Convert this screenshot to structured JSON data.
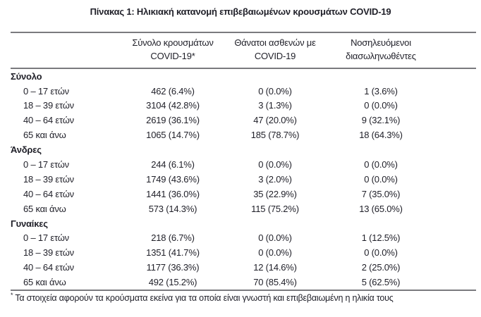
{
  "title": "Πίνακας 1: Ηλικιακή κατανομή επιβεβαιωμένων κρουσμάτων COVID-19",
  "table": {
    "col_headers": [
      {
        "line1": "Σύνολο κρουσμάτων",
        "line2": "COVID-19*"
      },
      {
        "line1": "Θάνατοι ασθενών με",
        "line2": "COVID-19"
      },
      {
        "line1": "Νοσηλευόμενοι",
        "line2": "διασωληνωθέντες"
      }
    ],
    "sections": [
      {
        "label": "Σύνολο",
        "rows": [
          {
            "age": "0 – 17 ετών",
            "cases": "462 (6.4%)",
            "deaths": "0 (0.0%)",
            "intubated": "1 (3.6%)"
          },
          {
            "age": "18 – 39 ετών",
            "cases": "3104 (42.8%)",
            "deaths": "3 (1.3%)",
            "intubated": "0 (0.0%)"
          },
          {
            "age": "40 – 64 ετών",
            "cases": "2619 (36.1%)",
            "deaths": "47 (20.0%)",
            "intubated": "9 (32.1%)"
          },
          {
            "age": "65 και άνω",
            "cases": "1065 (14.7%)",
            "deaths": "185 (78.7%)",
            "intubated": "18 (64.3%)"
          }
        ]
      },
      {
        "label": "Άνδρες",
        "rows": [
          {
            "age": "0 – 17 ετών",
            "cases": "244 (6.1%)",
            "deaths": "0 (0.0%)",
            "intubated": "0 (0.0%)"
          },
          {
            "age": "18 – 39 ετών",
            "cases": "1749 (43.6%)",
            "deaths": "3 (2.0%)",
            "intubated": "0 (0.0%)"
          },
          {
            "age": "40 – 64 ετών",
            "cases": "1441 (36.0%)",
            "deaths": "35 (22.9%)",
            "intubated": "7 (35.0%)"
          },
          {
            "age": "65 και άνω",
            "cases": "573 (14.3%)",
            "deaths": "115 (75.2%)",
            "intubated": "13 (65.0%)"
          }
        ]
      },
      {
        "label": "Γυναίκες",
        "rows": [
          {
            "age": "0 – 17 ετών",
            "cases": "218 (6.7%)",
            "deaths": "0 (0.0%)",
            "intubated": "1 (12.5%)"
          },
          {
            "age": "18 – 39 ετών",
            "cases": "1351 (41.7%)",
            "deaths": "0 (0.0%)",
            "intubated": "0 (0.0%)"
          },
          {
            "age": "40 – 64 ετών",
            "cases": "1177 (36.3%)",
            "deaths": "12 (14.6%)",
            "intubated": "2 (25.0%)"
          },
          {
            "age": "65 και άνω",
            "cases": "492 (15.2%)",
            "deaths": "70 (85.4%)",
            "intubated": "5 (62.5%)"
          }
        ]
      }
    ]
  },
  "footnote": {
    "marker": "*",
    "text": "Τα στοιχεία αφορούν τα κρούσματα εκείνα για τα οποία είναι γνωστή και επιβεβαιωμένη η ηλικία τους"
  },
  "colors": {
    "text": "#1f1f28",
    "rule": "#7a7a7e",
    "background": "#ffffff"
  }
}
